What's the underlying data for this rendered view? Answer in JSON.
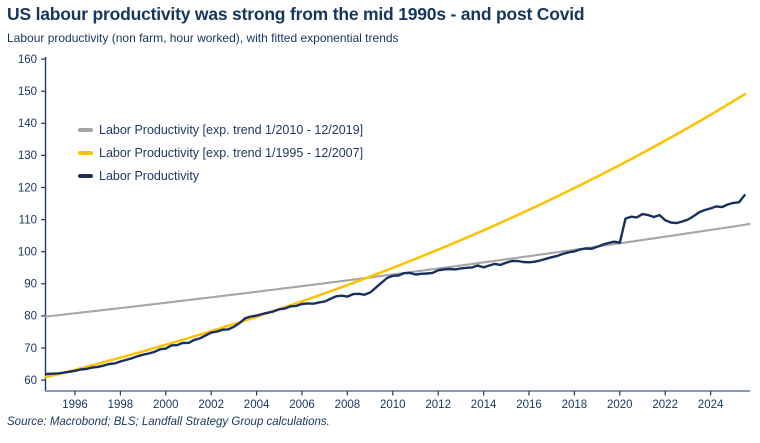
{
  "header": {
    "title": "US labour productivity was strong from the mid 1990s - and post Covid",
    "subtitle": "Labour productivity (non farm, hour worked), with fitted exponential trends"
  },
  "footer": {
    "source": "Source: Macrobond; BLS; Landfall Strategy Group calculations."
  },
  "colors": {
    "text_navy": "#17365d",
    "line_navy": "#17305e",
    "trend_yellow": "#ffc000",
    "trend_gray": "#a6a6a6",
    "axis_left_spine": "#1f3864",
    "axis_bottom_spine": "#5b7ca3",
    "tick": "#1f3864",
    "background": "#ffffff"
  },
  "chart_data": {
    "type": "line",
    "title": "US labour productivity was strong from the mid 1990s - and post Covid",
    "subtitle": "Labour productivity (non farm, hour worked), with fitted exponential trends",
    "source": "Source: Macrobond; BLS; Landfall Strategy Group calculations.",
    "grid": "off",
    "legend_position": "top-left-inside",
    "y_axis": {
      "min": 60,
      "max": 160,
      "tick_step": 10,
      "ticks": [
        60,
        70,
        80,
        90,
        100,
        110,
        120,
        130,
        140,
        150,
        160
      ]
    },
    "x_axis": {
      "start_year": 1994.75,
      "end_year": 2025.74,
      "tick_years": [
        1996,
        1998,
        2000,
        2002,
        2004,
        2006,
        2008,
        2010,
        2012,
        2014,
        2016,
        2018,
        2020,
        2022,
        2024
      ],
      "tick_labels": [
        "1996",
        "1998",
        "2000",
        "2002",
        "2004",
        "2006",
        "2008",
        "2010",
        "2012",
        "2014",
        "2016",
        "2018",
        "2020",
        "2022",
        "2024"
      ]
    },
    "series": [
      {
        "name": "Labor Productivity [exp. trend 1/2010 - 12/2019]",
        "color": "#a6a6a6",
        "kind": "exp_trend",
        "anchor_year": 2010,
        "anchor_value": 92.9,
        "annual_growth_pct": 1.0,
        "x_start": 1994.72,
        "x_end": 2025.74,
        "approx_values": {
          "1995": 79.8,
          "2010": 92.9,
          "2020": 102.6,
          "2025.7": 108.6
        }
      },
      {
        "name": "Labor Productivity [exp. trend 1/1995 - 12/2007]",
        "color": "#ffc000",
        "kind": "exp_trend",
        "anchor_year": 1995,
        "anchor_value": 61.4,
        "annual_growth_pct": 2.95,
        "x_start": 1994.72,
        "x_end": 2025.55,
        "approx_values": {
          "1995": 61.4,
          "2000": 71.1,
          "2008": 89.7,
          "2015": 110.2,
          "2020": 128.4,
          "2025.5": 150.8
        }
      },
      {
        "name": "Labor Productivity",
        "color": "#17305e",
        "kind": "data",
        "x_start": 1994.75,
        "x_step": 0.25,
        "values": [
          61.9,
          62.0,
          62.1,
          62.3,
          62.6,
          62.9,
          63.3,
          63.5,
          63.9,
          64.1,
          64.5,
          65.0,
          65.2,
          65.8,
          66.3,
          66.8,
          67.4,
          67.9,
          68.3,
          68.8,
          69.6,
          69.8,
          70.8,
          70.9,
          71.6,
          71.6,
          72.5,
          73.0,
          73.9,
          74.8,
          75.1,
          75.7,
          75.8,
          76.6,
          77.8,
          79.3,
          79.8,
          80.1,
          80.6,
          81.0,
          81.4,
          82.1,
          82.3,
          83.0,
          83.1,
          83.7,
          83.9,
          83.8,
          84.2,
          84.5,
          85.3,
          86.1,
          86.3,
          86.0,
          86.8,
          86.9,
          86.6,
          87.3,
          88.8,
          90.3,
          91.8,
          92.5,
          92.6,
          93.3,
          93.4,
          92.9,
          93.1,
          93.2,
          93.4,
          94.2,
          94.5,
          94.6,
          94.5,
          94.8,
          95.0,
          95.1,
          95.7,
          95.1,
          95.7,
          96.2,
          95.9,
          96.6,
          97.1,
          97.1,
          96.8,
          96.7,
          96.9,
          97.3,
          97.8,
          98.3,
          98.7,
          99.3,
          99.8,
          100.1,
          100.7,
          101.0,
          100.9,
          101.5,
          102.2,
          102.7,
          103.1,
          102.8,
          110.3,
          110.9,
          110.7,
          111.7,
          111.4,
          110.8,
          111.4,
          109.8,
          109.1,
          108.9,
          109.4,
          110.0,
          111.1,
          112.3,
          113.0,
          113.5,
          114.1,
          113.9,
          114.7,
          115.2,
          115.4,
          117.6
        ]
      }
    ]
  }
}
